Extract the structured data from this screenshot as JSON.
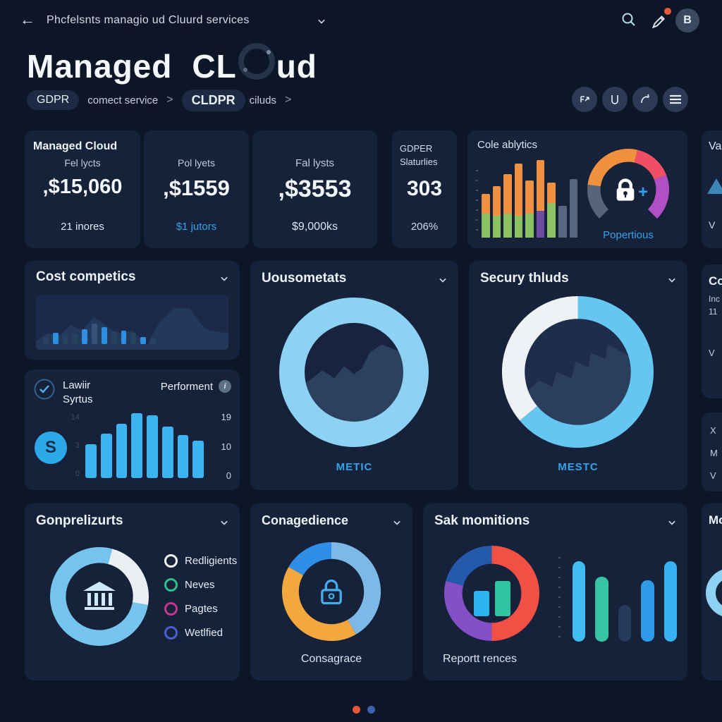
{
  "navbar": {
    "back": "←",
    "title": "Phcfelsnts managio ud Cluurd services",
    "avatar": "B"
  },
  "header": {
    "part1": "Managed",
    "part2a": "CL",
    "part2b": "ud"
  },
  "breadcrumb": {
    "chip1": "GDPR",
    "seg1": "comect service",
    "sep1": ">",
    "chip2": "CLDPR",
    "seg2": "ciluds",
    "sep2": ">"
  },
  "icons": {
    "navbar": [
      "search-icon",
      "alert-icon",
      "avatar"
    ],
    "actions": [
      "flow-icon",
      "download-icon",
      "share-icon",
      "menu-icon"
    ]
  },
  "stats": {
    "card1": {
      "title": "Managed Cloud",
      "label": "Fel lycts",
      "value": ",$15,060",
      "foot": "21 inores"
    },
    "card2": {
      "label": "Pol lyets",
      "value": ",$1559",
      "foot": "$1 jutors"
    },
    "card3": {
      "label": "Fal lysts",
      "value": ",$3553",
      "foot": "$9,000ks"
    },
    "card4": {
      "label1": "GDPER",
      "label2": "Slaturlies",
      "value": "303",
      "foot": "206%"
    },
    "card5": {
      "title": "Cole ablytics",
      "gauge_label": "Popertious"
    },
    "card6": {
      "title": "Va",
      "foot": "V"
    }
  },
  "panels": {
    "cost": {
      "title": "Cost competics"
    },
    "lawiir": {
      "title1": "Lawiir",
      "title2": "Syrtus",
      "right_label": "Performent",
      "axis_left": [
        "14",
        "3",
        "0"
      ],
      "axis_right": [
        "19",
        "10",
        "0"
      ]
    },
    "uouso": {
      "title": "Uousometats",
      "caption": "METIC"
    },
    "secury": {
      "title": "Secury thluds",
      "caption": "MESTC"
    },
    "co_cut": {
      "title": "Co",
      "l1": "Inc",
      "l2": "11",
      "l3": "V"
    },
    "xmv": {
      "l1": "X",
      "l2": "M",
      "l3": "V"
    },
    "gonpre": {
      "title": "Gonprelizurts",
      "legend": [
        {
          "label": "Redligients",
          "color": "#f2f5f8"
        },
        {
          "label": "Neves",
          "color": "#2fbf8f"
        },
        {
          "label": "Pagtes",
          "color": "#c8348e"
        },
        {
          "label": "Wetlfied",
          "color": "#4a5fd0"
        }
      ]
    },
    "conage": {
      "title": "Conagedience",
      "caption": "Consagrace"
    },
    "sak": {
      "title": "Sak momitions",
      "caption": "Reportt rences"
    },
    "mo": {
      "title": "Mo"
    }
  },
  "pagination": {
    "dots": [
      "#e8573c",
      "#3e63a8"
    ]
  },
  "chart_data": [
    {
      "id": "cole-bars",
      "type": "bar-stacked",
      "title": "Cole ablytics",
      "gap": 4,
      "bars": [
        [
          [
            "#8cc263",
            30
          ],
          [
            "#ef9140",
            25
          ]
        ],
        [
          [
            "#8cc263",
            28
          ],
          [
            "#ef9140",
            37
          ]
        ],
        [
          [
            "#8cc263",
            30
          ],
          [
            "#ef9140",
            50
          ]
        ],
        [
          [
            "#8cc263",
            28
          ],
          [
            "#ef9140",
            66
          ]
        ],
        [
          [
            "#8cc263",
            30
          ],
          [
            "#ef9140",
            42
          ]
        ],
        [
          [
            "#6c4ba0",
            34
          ],
          [
            "#ef9140",
            64
          ]
        ],
        [
          [
            "#8cc263",
            44
          ],
          [
            "#ef9140",
            26
          ]
        ],
        [
          [
            "#56677f",
            40
          ]
        ],
        [
          [
            "#56677f",
            74
          ]
        ]
      ]
    },
    {
      "id": "popertious-gauge",
      "type": "donut",
      "title": "Popertious",
      "start": -135,
      "thickness": 16,
      "segments": [
        {
          "color": "#5a6478",
          "sweep": 52
        },
        {
          "color": "#f0913f",
          "sweep": 96
        },
        {
          "color": "#ef4f63",
          "sweep": 56
        },
        {
          "color": "#b14fc4",
          "sweep": 66
        }
      ]
    },
    {
      "id": "cost-bars",
      "type": "bar",
      "title": "Cost competics",
      "gap": 6,
      "radius": 2,
      "bars": [
        [
          "#27415f",
          18
        ],
        [
          "#2e8fe0",
          30
        ],
        [
          "#27415f",
          24
        ],
        [
          "#27415f",
          26
        ],
        [
          "#2e8fe0",
          40
        ],
        [
          "#35537a",
          56
        ],
        [
          "#2e8fe0",
          46
        ],
        [
          "#27415f",
          34
        ],
        [
          "#2e8fe0",
          36
        ],
        [
          "#27415f",
          30
        ],
        [
          "#2e8fe0",
          20
        ],
        [
          "#27415f",
          16
        ]
      ]
    },
    {
      "id": "lawiir-bars",
      "type": "bar",
      "title": "Performent",
      "gap": 6,
      "radius": 3,
      "ylim": [
        0,
        19
      ],
      "bars": [
        [
          "#3cb4f2",
          52
        ],
        [
          "#3cb4f2",
          68
        ],
        [
          "#3cb4f2",
          84
        ],
        [
          "#3cb4f2",
          100
        ],
        [
          "#3cb4f2",
          97
        ],
        [
          "#3cb4f2",
          79
        ],
        [
          "#3cb4f2",
          66
        ],
        [
          "#3cb4f2",
          58
        ]
      ]
    },
    {
      "id": "uouso-donut",
      "type": "donut",
      "title": "Uousometats",
      "label": "METIC",
      "thickness": 17,
      "segments": [
        {
          "color": "#8ed2f3",
          "sweep": 360
        }
      ]
    },
    {
      "id": "secury-donut",
      "type": "donut",
      "title": "Secury thluds",
      "label": "MESTC",
      "start": 0,
      "thickness": 15,
      "segments": [
        {
          "color": "#66c6f2",
          "sweep": 230
        },
        {
          "color": "#eef2f5",
          "sweep": 130
        }
      ]
    },
    {
      "id": "gonpre-donut",
      "type": "donut",
      "title": "Gonprelizurts",
      "start": 15,
      "thickness": 16,
      "segments": [
        {
          "color": "#e9eff3",
          "sweep": 85
        },
        {
          "color": "#74c4ee",
          "sweep": 275
        }
      ]
    },
    {
      "id": "conage-donut",
      "type": "donut",
      "title": "Conagedience",
      "label": "Consagrace",
      "start": 0,
      "thickness": 17,
      "segments": [
        {
          "color": "#7cb9e6",
          "sweep": 150
        },
        {
          "color": "#f3a73f",
          "sweep": 150
        },
        {
          "color": "#2f8fe8",
          "sweep": 60
        }
      ]
    },
    {
      "id": "sak-donut",
      "type": "donut",
      "title": "Sak momitions",
      "label": "Reportt rences",
      "start": 0,
      "thickness": 19,
      "segments": [
        {
          "color": "#f25044",
          "sweep": 180
        },
        {
          "color": "#8450c8",
          "sweep": 105
        },
        {
          "color": "#2458a8",
          "sweep": 75
        }
      ]
    },
    {
      "id": "sak-inner-bars",
      "type": "bar",
      "gap": 8,
      "radius": 3,
      "bars": [
        [
          "#2bb3ef",
          55
        ],
        [
          "#2fc3a4",
          78
        ]
      ]
    },
    {
      "id": "sak-right-bars",
      "type": "bar",
      "gap": 14,
      "radius": 9,
      "bars": [
        [
          "#41bdf2",
          92
        ],
        [
          "#36c4a4",
          74
        ],
        [
          "#263a5c",
          42
        ],
        [
          "#2f9ae8",
          70
        ],
        [
          "#38b2f0",
          92
        ]
      ]
    },
    {
      "id": "mo-donut",
      "type": "donut",
      "thickness": 20,
      "segments": [
        {
          "color": "#8ed2f3",
          "sweep": 360
        }
      ]
    }
  ]
}
